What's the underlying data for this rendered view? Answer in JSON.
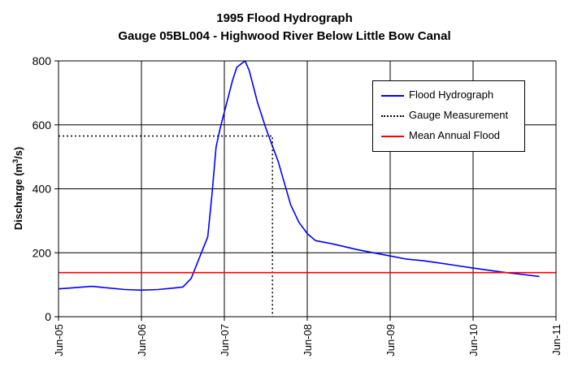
{
  "title_lines": [
    "1995 Flood Hydrograph",
    "Gauge 05BL004 - Highwood River Below Little Bow Canal"
  ],
  "chart_data": {
    "type": "line",
    "title": "1995 Flood Hydrograph Gauge 05BL004 - Highwood River Below Little Bow Canal",
    "ylabel_main": "Discharge (m",
    "ylabel_sup": "3",
    "ylabel_end": "/s)",
    "xlabel": "",
    "x_ticks": [
      "Jun-05",
      "Jun-06",
      "Jun-07",
      "Jun-08",
      "Jun-09",
      "Jun-10",
      "Jun-11"
    ],
    "y_ticks": [
      0,
      200,
      400,
      600,
      800
    ],
    "xlim": [
      5,
      11
    ],
    "ylim": [
      0,
      800
    ],
    "grid": true,
    "legend_position": "top-right",
    "series": [
      {
        "name": "Flood Hydrograph",
        "color": "#0000ff",
        "style": "solid",
        "x": [
          5.0,
          5.2,
          5.4,
          5.6,
          5.8,
          6.0,
          6.2,
          6.4,
          6.5,
          6.6,
          6.7,
          6.8,
          6.85,
          6.9,
          6.95,
          7.0,
          7.05,
          7.1,
          7.15,
          7.2,
          7.25,
          7.3,
          7.35,
          7.4,
          7.45,
          7.5,
          7.55,
          7.6,
          7.65,
          7.7,
          7.8,
          7.9,
          8.0,
          8.1,
          8.3,
          8.6,
          8.8,
          9.0,
          9.2,
          9.4,
          9.6,
          9.8,
          10.0,
          10.2,
          10.4,
          10.6,
          10.8
        ],
        "y": [
          87,
          91,
          95,
          90,
          85,
          83,
          85,
          90,
          93,
          120,
          185,
          250,
          380,
          530,
          590,
          640,
          690,
          740,
          780,
          790,
          800,
          770,
          720,
          670,
          630,
          590,
          555,
          520,
          485,
          440,
          350,
          295,
          260,
          238,
          228,
          210,
          200,
          190,
          180,
          175,
          168,
          160,
          152,
          145,
          138,
          132,
          126
        ]
      },
      {
        "name": "Gauge Measurement",
        "color": "#000000",
        "style": "dotted",
        "x": [
          5.0,
          7.58,
          7.58
        ],
        "y": [
          565,
          565,
          0
        ]
      },
      {
        "name": "Mean Annual Flood",
        "color": "#ff0000",
        "style": "solid",
        "x": [
          5.0,
          11.0
        ],
        "y": [
          138,
          138
        ]
      }
    ]
  }
}
